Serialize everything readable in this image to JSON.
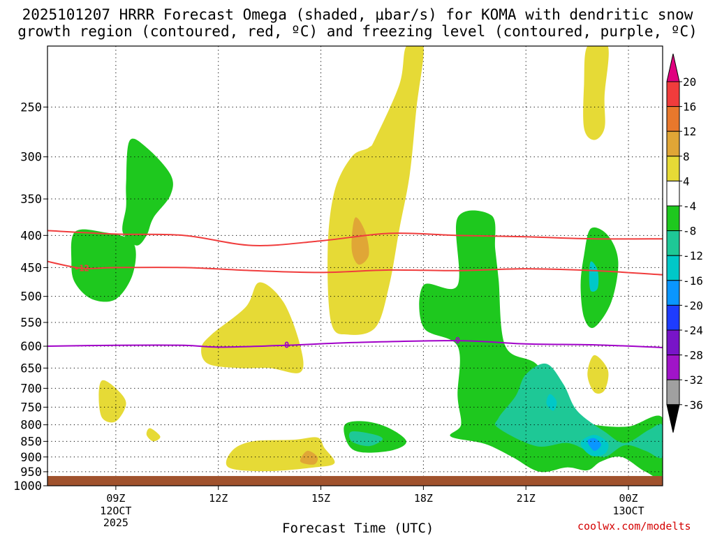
{
  "title_line1": "2025101207 HRRR Forecast Omega (shaded, μbar/s) for KOMA with dendritic snow",
  "title_line2": "growth region (contoured, red, ºC) and freezing level (contoured, purple, ºC)",
  "credit": "coolwx.com/modelts",
  "chart_data": {
    "type": "heatmap",
    "title": "2025101207 HRRR Forecast Omega (shaded, μbar/s) for KOMA with dendritic snow growth region (contoured, red, ºC) and freezing level (contoured, purple, ºC)",
    "xlabel": "Forecast Time (UTC)",
    "ylabel": "",
    "x_ticks": [
      {
        "hour": 9,
        "label": "09Z",
        "sub": [
          "12OCT",
          "2025"
        ]
      },
      {
        "hour": 12,
        "label": "12Z",
        "sub": []
      },
      {
        "hour": 15,
        "label": "15Z",
        "sub": []
      },
      {
        "hour": 18,
        "label": "18Z",
        "sub": []
      },
      {
        "hour": 21,
        "label": "21Z",
        "sub": []
      },
      {
        "hour": 24,
        "label": "00Z",
        "sub": [
          "13OCT"
        ]
      }
    ],
    "xlim_hours": [
      7,
      25
    ],
    "y_ticks_hpa": [
      250,
      300,
      350,
      400,
      450,
      500,
      550,
      600,
      650,
      700,
      750,
      800,
      850,
      900,
      950,
      1000
    ],
    "ylim_hpa": [
      200,
      1000
    ],
    "surface_pressure_hpa": 965,
    "colorbar": {
      "labels": [
        "20",
        "16",
        "12",
        "8",
        "4",
        "-4",
        "-8",
        "-12",
        "-16",
        "-20",
        "-24",
        "-28",
        "-32",
        "-36"
      ],
      "bins": [
        {
          "range": ">20",
          "color": "#e0007f"
        },
        {
          "range": "16 to 20",
          "color": "#f03c3c"
        },
        {
          "range": "12 to 16",
          "color": "#e8782c"
        },
        {
          "range": "8 to 12",
          "color": "#e0a636"
        },
        {
          "range": "4 to 8",
          "color": "#e6da36"
        },
        {
          "range": "-4 to 4",
          "color": "#ffffff"
        },
        {
          "range": "-8 to -4",
          "color": "#1ec81e"
        },
        {
          "range": "-12 to -8",
          "color": "#1ec896"
        },
        {
          "range": "-16 to -12",
          "color": "#00c8c8"
        },
        {
          "range": "-20 to -16",
          "color": "#0a96ff"
        },
        {
          "range": "-24 to -20",
          "color": "#1e3cff"
        },
        {
          "range": "-28 to -24",
          "color": "#7814c8"
        },
        {
          "range": "-32 to -28",
          "color": "#a014c8"
        },
        {
          "range": "-36 to -32",
          "color": "#a0a0a0"
        },
        {
          "range": "<-36",
          "color": "#000000"
        }
      ]
    },
    "contours": [
      {
        "name": "dendritic-upper-red",
        "label": "",
        "color": "#f03c3c",
        "points": [
          [
            7,
            393
          ],
          [
            9,
            398
          ],
          [
            11,
            400
          ],
          [
            13,
            415
          ],
          [
            15,
            408
          ],
          [
            17,
            397
          ],
          [
            19,
            400
          ],
          [
            21,
            402
          ],
          [
            23,
            405
          ],
          [
            25,
            405
          ]
        ]
      },
      {
        "name": "dendritic-lower-red",
        "label": "-12",
        "color": "#f03c3c",
        "points": [
          [
            7,
            440
          ],
          [
            8,
            451
          ],
          [
            9,
            450
          ],
          [
            11,
            450
          ],
          [
            13,
            455
          ],
          [
            15,
            458
          ],
          [
            17,
            454
          ],
          [
            19,
            455
          ],
          [
            21,
            452
          ],
          [
            23,
            455
          ],
          [
            25,
            462
          ]
        ]
      },
      {
        "name": "freezing-level",
        "label": "0",
        "color": "#a000c8",
        "points": [
          [
            7,
            600
          ],
          [
            9,
            598
          ],
          [
            11,
            598
          ],
          [
            12,
            602
          ],
          [
            14,
            598
          ],
          [
            16,
            592
          ],
          [
            19,
            588
          ],
          [
            21,
            595
          ],
          [
            23,
            597
          ],
          [
            25,
            603
          ]
        ]
      }
    ],
    "omega_regions": [
      {
        "name": "green-upper-left",
        "bin": "-8 to -4",
        "points": [
          [
            9.4,
            283
          ],
          [
            9.9,
            290
          ],
          [
            10.6,
            320
          ],
          [
            10.6,
            345
          ],
          [
            10.1,
            375
          ],
          [
            9.9,
            400
          ],
          [
            9.6,
            415
          ],
          [
            9.2,
            395
          ],
          [
            9.3,
            360
          ],
          [
            9.3,
            330
          ]
        ]
      },
      {
        "name": "green-left-450",
        "bin": "-8 to -4",
        "points": [
          [
            7.8,
            395
          ],
          [
            8.6,
            395
          ],
          [
            9.5,
            410
          ],
          [
            9.5,
            460
          ],
          [
            9.0,
            505
          ],
          [
            8.3,
            505
          ],
          [
            7.8,
            475
          ],
          [
            7.7,
            440
          ]
        ]
      },
      {
        "name": "yellow-upper-center",
        "bin": "4 to 8",
        "points": [
          [
            17.5,
            200
          ],
          [
            18.0,
            200
          ],
          [
            17.8,
            250
          ],
          [
            17.6,
            320
          ],
          [
            17.3,
            390
          ],
          [
            17.0,
            480
          ],
          [
            16.6,
            560
          ],
          [
            15.8,
            575
          ],
          [
            15.3,
            550
          ],
          [
            15.2,
            420
          ],
          [
            15.4,
            340
          ],
          [
            15.9,
            300
          ],
          [
            16.4,
            290
          ],
          [
            16.6,
            280
          ],
          [
            17.3,
            230
          ]
        ]
      },
      {
        "name": "orange-center-400",
        "bin": "8 to 12",
        "points": [
          [
            16.0,
            375
          ],
          [
            16.3,
            395
          ],
          [
            16.4,
            430
          ],
          [
            16.1,
            445
          ],
          [
            15.9,
            420
          ]
        ]
      },
      {
        "name": "yellow-mid-center",
        "bin": "4 to 8",
        "points": [
          [
            13.2,
            475
          ],
          [
            13.9,
            510
          ],
          [
            14.4,
            600
          ],
          [
            14.4,
            660
          ],
          [
            13.5,
            650
          ],
          [
            12.6,
            650
          ],
          [
            11.7,
            640
          ],
          [
            11.5,
            605
          ],
          [
            11.8,
            575
          ],
          [
            12.8,
            520
          ]
        ]
      },
      {
        "name": "yellow-left-750",
        "bin": "4 to 8",
        "points": [
          [
            8.6,
            680
          ],
          [
            9.0,
            700
          ],
          [
            9.3,
            740
          ],
          [
            9.0,
            790
          ],
          [
            8.6,
            780
          ],
          [
            8.5,
            720
          ]
        ]
      },
      {
        "name": "yellow-left-830",
        "bin": "4 to 8",
        "points": [
          [
            10.0,
            810
          ],
          [
            10.3,
            835
          ],
          [
            10.1,
            850
          ],
          [
            9.9,
            830
          ]
        ]
      },
      {
        "name": "yellow-lower-center",
        "bin": "4 to 8",
        "points": [
          [
            12.4,
            880
          ],
          [
            13.0,
            850
          ],
          [
            14.2,
            845
          ],
          [
            14.9,
            838
          ],
          [
            15.1,
            870
          ],
          [
            15.4,
            920
          ],
          [
            14.8,
            935
          ],
          [
            13.4,
            948
          ],
          [
            12.3,
            935
          ]
        ]
      },
      {
        "name": "orange-lower-center",
        "bin": "8 to 12",
        "points": [
          [
            14.6,
            880
          ],
          [
            14.9,
            900
          ],
          [
            14.8,
            925
          ],
          [
            14.4,
            915
          ]
        ]
      },
      {
        "name": "green-lower-center",
        "bin": "-8 to -4",
        "points": [
          [
            15.7,
            800
          ],
          [
            16.3,
            790
          ],
          [
            17.0,
            810
          ],
          [
            17.5,
            850
          ],
          [
            17.1,
            878
          ],
          [
            16.2,
            885
          ],
          [
            15.8,
            860
          ]
        ]
      },
      {
        "name": "teal-lower-center",
        "bin": "-12 to -8",
        "points": [
          [
            15.9,
            820
          ],
          [
            16.6,
            830
          ],
          [
            16.8,
            845
          ],
          [
            16.4,
            865
          ],
          [
            15.9,
            850
          ]
        ]
      },
      {
        "name": "green-right-main",
        "bin": "-8 to -4",
        "points": [
          [
            19.0,
            375
          ],
          [
            20.0,
            372
          ],
          [
            20.1,
            420
          ],
          [
            20.2,
            470
          ],
          [
            20.4,
            600
          ],
          [
            21.3,
            640
          ],
          [
            22.0,
            720
          ],
          [
            22.5,
            780
          ],
          [
            23.0,
            800
          ],
          [
            24.0,
            805
          ],
          [
            25.0,
            780
          ],
          [
            25.0,
            960
          ],
          [
            24.5,
            950
          ],
          [
            23.8,
            900
          ],
          [
            23.2,
            915
          ],
          [
            22.8,
            945
          ],
          [
            22.2,
            935
          ],
          [
            21.4,
            950
          ],
          [
            20.6,
            900
          ],
          [
            19.8,
            858
          ],
          [
            18.8,
            835
          ],
          [
            19.1,
            800
          ],
          [
            19.0,
            720
          ],
          [
            19.0,
            600
          ],
          [
            18.0,
            560
          ],
          [
            18.0,
            480
          ],
          [
            19.0,
            480
          ]
        ]
      },
      {
        "name": "teal-right-main",
        "bin": "-12 to -8",
        "points": [
          [
            21.0,
            665
          ],
          [
            21.6,
            640
          ],
          [
            22.1,
            690
          ],
          [
            22.5,
            760
          ],
          [
            23.3,
            820
          ],
          [
            23.9,
            855
          ],
          [
            24.6,
            815
          ],
          [
            25.0,
            802
          ],
          [
            25.0,
            900
          ],
          [
            24.5,
            880
          ],
          [
            23.9,
            862
          ],
          [
            23.3,
            900
          ],
          [
            22.8,
            880
          ],
          [
            22.2,
            855
          ],
          [
            21.3,
            865
          ],
          [
            20.2,
            810
          ],
          [
            20.2,
            780
          ],
          [
            20.7,
            720
          ]
        ]
      },
      {
        "name": "cyan-right-750",
        "bin": "-16 to -12",
        "points": [
          [
            21.7,
            715
          ],
          [
            21.9,
            735
          ],
          [
            21.8,
            760
          ],
          [
            21.6,
            740
          ]
        ]
      },
      {
        "name": "cyan-right-860",
        "bin": "-16 to -12",
        "points": [
          [
            22.6,
            855
          ],
          [
            23.0,
            830
          ],
          [
            23.4,
            855
          ],
          [
            23.3,
            890
          ],
          [
            22.9,
            895
          ]
        ]
      },
      {
        "name": "blue-right-860",
        "bin": "-20 to -16",
        "points": [
          [
            22.8,
            850
          ],
          [
            23.0,
            840
          ],
          [
            23.2,
            860
          ],
          [
            23.0,
            880
          ]
        ]
      },
      {
        "name": "green-right-450",
        "bin": "-8 to -4",
        "points": [
          [
            22.9,
            390
          ],
          [
            23.4,
            400
          ],
          [
            23.7,
            440
          ],
          [
            23.5,
            510
          ],
          [
            23.0,
            560
          ],
          [
            22.7,
            540
          ],
          [
            22.6,
            480
          ],
          [
            22.7,
            430
          ]
        ]
      },
      {
        "name": "cyan-right-450",
        "bin": "-16 to -12",
        "points": [
          [
            22.9,
            440
          ],
          [
            23.1,
            455
          ],
          [
            23.1,
            485
          ],
          [
            22.9,
            490
          ],
          [
            22.85,
            465
          ]
        ]
      },
      {
        "name": "yellow-top-right",
        "bin": "4 to 8",
        "points": [
          [
            22.8,
            200
          ],
          [
            23.4,
            200
          ],
          [
            23.3,
            240
          ],
          [
            23.3,
            270
          ],
          [
            23.0,
            282
          ],
          [
            22.7,
            270
          ],
          [
            22.7,
            230
          ]
        ]
      },
      {
        "name": "yellow-right-650",
        "bin": "4 to 8",
        "points": [
          [
            23.0,
            620
          ],
          [
            23.4,
            655
          ],
          [
            23.3,
            705
          ],
          [
            23.0,
            710
          ],
          [
            22.8,
            665
          ]
        ]
      }
    ]
  }
}
